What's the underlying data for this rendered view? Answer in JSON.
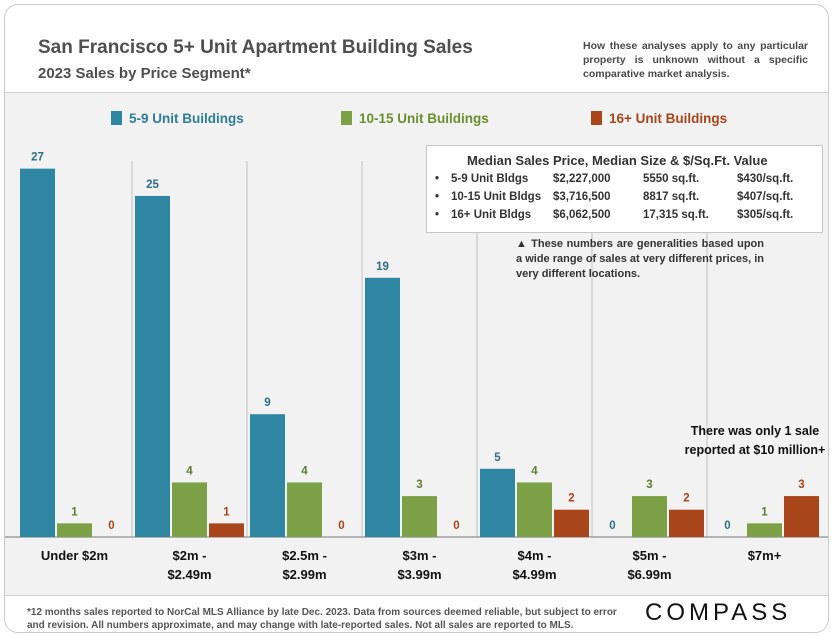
{
  "title": "San Francisco 5+ Unit Apartment Building Sales",
  "subtitle": "2023 Sales by Price Segment*",
  "disclaimer": "How these analyses apply to any particular property is unknown without a specific comparative market analysis.",
  "colors": {
    "blue": "#2f86a3",
    "green": "#7ba046",
    "orange": "#a9451b"
  },
  "chart_data": {
    "type": "bar",
    "title": "San Francisco 5+ Unit Apartment Building Sales",
    "subtitle": "2023 Sales by Price Segment*",
    "xlabel": "",
    "ylabel": "",
    "ylim": [
      0,
      28
    ],
    "categories": [
      "Under $2m",
      "$2m - $2.49m",
      "$2.5m - $2.99m",
      "$3m - $3.99m",
      "$4m - $4.99m",
      "$5m - $6.99m",
      "$7m+"
    ],
    "series": [
      {
        "name": "5-9 Unit Buildings",
        "color": "#2f86a3",
        "values": [
          27,
          25,
          9,
          19,
          5,
          0,
          0
        ]
      },
      {
        "name": "10-15 Unit Buildings",
        "color": "#7ba046",
        "values": [
          1,
          4,
          4,
          3,
          4,
          3,
          1
        ]
      },
      {
        "name": "16+ Unit Buildings",
        "color": "#a9451b",
        "values": [
          0,
          1,
          0,
          0,
          2,
          2,
          3
        ]
      }
    ],
    "legend": "top"
  },
  "infobox": {
    "title": "Median Sales Price, Median Size & $/Sq.Ft. Value",
    "rows": [
      {
        "label": "5-9 Unit Bldgs",
        "price": "$2,227,000",
        "size": "5550 sq.ft.",
        "psf": "$430/sq.ft."
      },
      {
        "label": "10-15 Unit Bldgs",
        "price": "$3,716,500",
        "size": "8817 sq.ft.",
        "psf": "$407/sq.ft."
      },
      {
        "label": "16+ Unit Bldgs",
        "price": "$6,062,500",
        "size": "17,315 sq.ft.",
        "psf": "$305/sq.ft."
      }
    ]
  },
  "note": "▲ These numbers are generalities based upon a wide range of sales at very different prices, in very different locations.",
  "callout": "There was only 1 sale reported at $10 million+",
  "footnote": "*12 months sales reported to NorCal MLS Alliance by late Dec. 2023. Data from sources deemed reliable, but subject to error and revision. All numbers approximate, and may change with late-reported sales. Not all sales are reported to MLS.",
  "logo": "COMPASS"
}
